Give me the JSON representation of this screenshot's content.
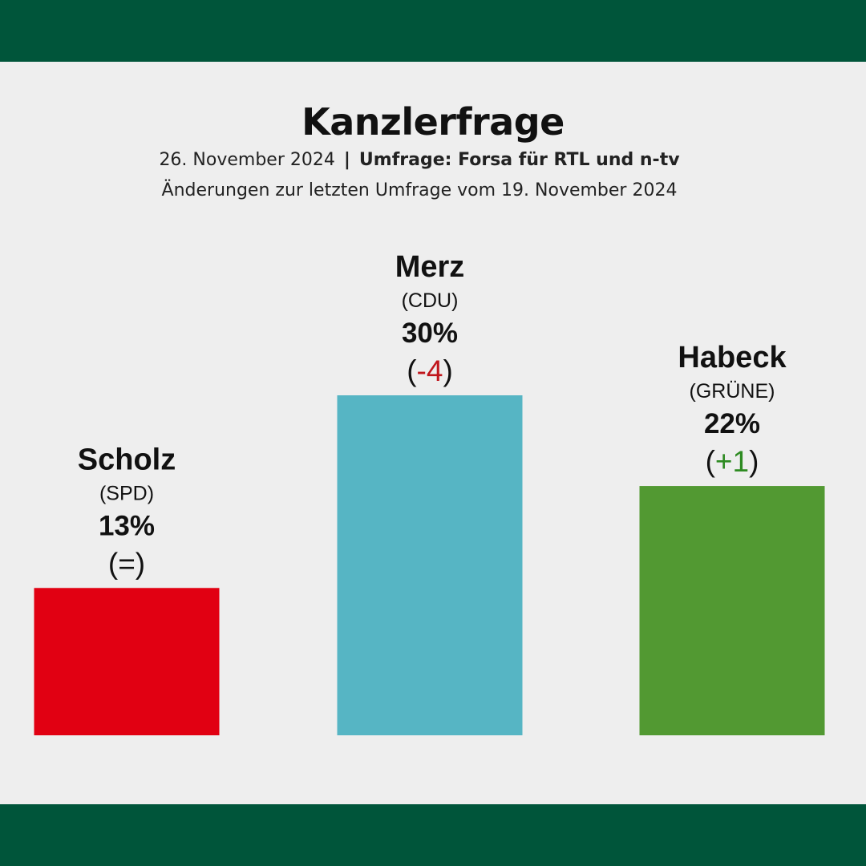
{
  "header": {
    "title": "Kanzlerfrage",
    "date": "26. November 2024",
    "separator": "|",
    "source": "Umfrage: Forsa für RTL und n-tv",
    "note": "Änderungen zur letzten Umfrage vom 19. November 2024"
  },
  "colors": {
    "frame": "#00553a",
    "background": "#eeeeee",
    "negative": "#c0161c",
    "positive": "#2e8b22"
  },
  "chart_data": {
    "type": "bar",
    "categories": [
      "Scholz",
      "Merz",
      "Habeck"
    ],
    "values": [
      13,
      30,
      22
    ],
    "unit": "%",
    "bars": [
      {
        "name": "Scholz",
        "party": "(SPD)",
        "value": 13,
        "value_label": "13%",
        "change": "=",
        "change_sign": "neutral",
        "color": "#e10012"
      },
      {
        "name": "Merz",
        "party": "(CDU)",
        "value": 30,
        "value_label": "30%",
        "change": "-4",
        "change_sign": "negative",
        "color": "#56b5c4"
      },
      {
        "name": "Habeck",
        "party": "(GRÜNE)",
        "value": 22,
        "value_label": "22%",
        "change": "+1",
        "change_sign": "positive",
        "color": "#529932"
      }
    ],
    "title": "Kanzlerfrage",
    "xlabel": "",
    "ylabel": "",
    "ylim": [
      0,
      30
    ],
    "grid": false,
    "legend": "none"
  }
}
